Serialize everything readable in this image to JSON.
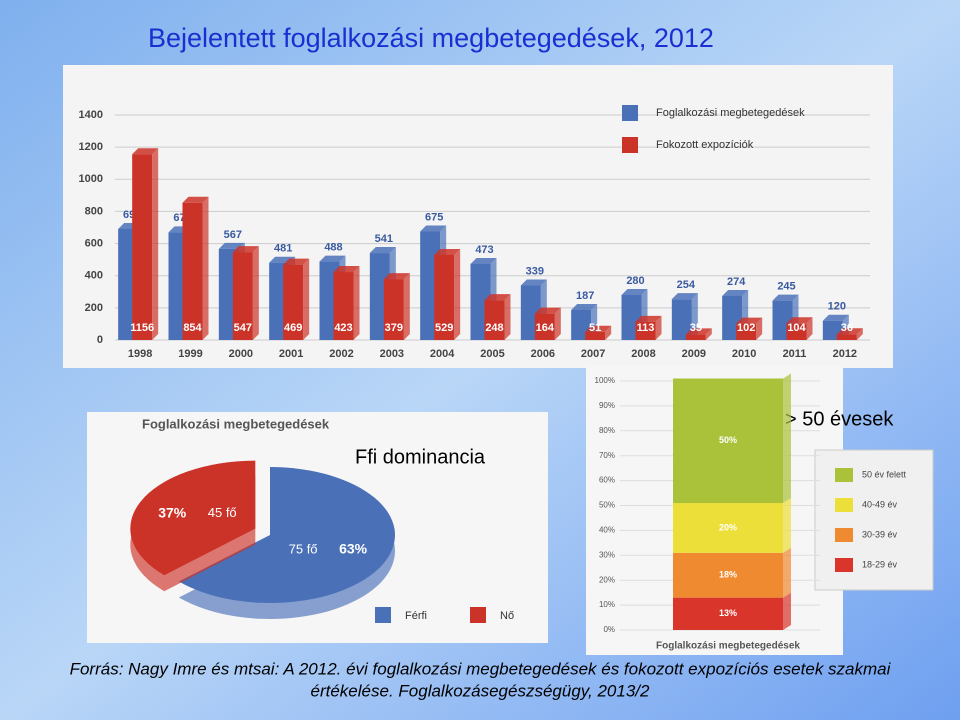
{
  "title": "Bejelentett foglalkozási megbetegedések, 2012",
  "annotations": [
    "Ffi dominancia",
    "> 50 évesek"
  ],
  "source": [
    "Forrás: Nagy Imre és mtsai: A 2012. évi foglalkozási megbetegedések és fokozott expozíciós esetek szakmai",
    "értékelése. Foglalkozásegészségügy, 2013/2"
  ],
  "chart_data": [
    {
      "type": "bar",
      "categories": [
        "1998",
        "1999",
        "2000",
        "2001",
        "2002",
        "2003",
        "2004",
        "2005",
        "2006",
        "2007",
        "2008",
        "2009",
        "2010",
        "2011",
        "2012"
      ],
      "series": [
        {
          "name": "Foglalkozási megbetegedések",
          "color": "#4a70b8",
          "values": [
            691,
            670,
            567,
            481,
            488,
            541,
            675,
            473,
            339,
            187,
            280,
            254,
            274,
            245,
            120
          ]
        },
        {
          "name": "Fokozott expozíciók",
          "color": "#cc3328",
          "values": [
            1156,
            854,
            547,
            469,
            423,
            379,
            529,
            248,
            164,
            51,
            113,
            35,
            102,
            104,
            36
          ]
        }
      ],
      "ylim": [
        0,
        1400
      ],
      "yticks": [
        0,
        200,
        400,
        600,
        800,
        1000,
        1200,
        1400
      ],
      "grid": true,
      "legend": "top-right"
    },
    {
      "type": "pie",
      "title": "Foglalkozási megbetegedések",
      "categories": [
        "Férfi",
        "Nő"
      ],
      "values": [
        63,
        37
      ],
      "value_labels": [
        "63%",
        "37%"
      ],
      "counts": [
        75,
        45
      ],
      "count_labels": [
        "75 fő",
        "45 fő"
      ],
      "colors": [
        "#4a70b8",
        "#cc3328"
      ]
    },
    {
      "type": "stacked_bar",
      "categories": [
        "Foglalkozási megbetegedések"
      ],
      "series": [
        {
          "name": "18-29 év",
          "color": "#d9352a",
          "values": [
            13
          ],
          "value_labels": [
            "13%"
          ]
        },
        {
          "name": "30-39 év",
          "color": "#f08a30",
          "values": [
            18
          ],
          "value_labels": [
            "18%"
          ]
        },
        {
          "name": "40-49 év",
          "color": "#ecdf3a",
          "values": [
            20
          ],
          "value_labels": [
            "20%"
          ]
        },
        {
          "name": "50 év felett",
          "color": "#a9c23a",
          "values": [
            50
          ],
          "value_labels": [
            "50%"
          ]
        }
      ],
      "ylim": [
        0,
        100
      ],
      "yticks": [
        {
          "value": 0,
          "label": "0%"
        },
        {
          "value": 10,
          "label": "10%"
        },
        {
          "value": 20,
          "label": "20%"
        },
        {
          "value": 30,
          "label": "30%"
        },
        {
          "value": 40,
          "label": "40%"
        },
        {
          "value": 50,
          "label": "50%"
        },
        {
          "value": 60,
          "label": "60%"
        },
        {
          "value": 70,
          "label": "70%"
        },
        {
          "value": 80,
          "label": "80%"
        },
        {
          "value": 90,
          "label": "90%"
        },
        {
          "value": 100,
          "label": "100%"
        }
      ],
      "grid": true,
      "legend": "right"
    }
  ]
}
